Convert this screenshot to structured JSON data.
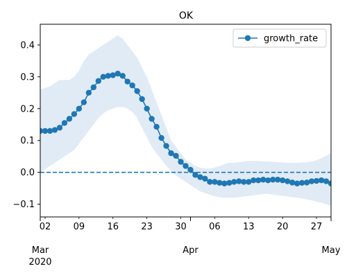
{
  "chart_data": {
    "type": "line",
    "title": "OK",
    "xlabel": "",
    "ylabel": "",
    "xlim": [
      "2020-03-01",
      "2020-04-30"
    ],
    "ylim": [
      -0.14,
      0.465
    ],
    "yticks": [
      -0.1,
      0.0,
      0.1,
      0.2,
      0.3,
      0.4
    ],
    "ytick_labels": [
      "−0.1",
      "0.0",
      "0.1",
      "0.2",
      "0.3",
      "0.4"
    ],
    "x_minor_ticks": [
      {
        "date": "2020-03-02",
        "label": "02"
      },
      {
        "date": "2020-03-09",
        "label": "09"
      },
      {
        "date": "2020-03-16",
        "label": "16"
      },
      {
        "date": "2020-03-23",
        "label": "23"
      },
      {
        "date": "2020-03-30",
        "label": "30"
      },
      {
        "date": "2020-04-06",
        "label": "06"
      },
      {
        "date": "2020-04-13",
        "label": "13"
      },
      {
        "date": "2020-04-20",
        "label": "20"
      },
      {
        "date": "2020-04-27",
        "label": "27"
      }
    ],
    "x_major_ticks": [
      {
        "date": "2020-03-01",
        "label": "Mar",
        "sublabel": "2020"
      },
      {
        "date": "2020-04-01",
        "label": "Apr",
        "sublabel": ""
      },
      {
        "date": "2020-05-01",
        "label": "May",
        "sublabel": ""
      }
    ],
    "grid": false,
    "legend": {
      "position": "top-right",
      "entries": [
        "growth_rate"
      ]
    },
    "reference_line": {
      "y": 0.0,
      "style": "dashed",
      "color": "#1f77b4"
    },
    "colors": {
      "series": "#1f77b4",
      "band": "#dce8f5"
    },
    "x_start": "2020-03-01",
    "series": [
      {
        "name": "growth_rate",
        "values": [
          0.13,
          0.13,
          0.13,
          0.133,
          0.14,
          0.155,
          0.168,
          0.183,
          0.2,
          0.22,
          0.25,
          0.267,
          0.287,
          0.3,
          0.303,
          0.305,
          0.31,
          0.303,
          0.285,
          0.273,
          0.255,
          0.23,
          0.2,
          0.168,
          0.143,
          0.108,
          0.083,
          0.06,
          0.052,
          0.033,
          0.02,
          0.008,
          -0.008,
          -0.015,
          -0.02,
          -0.03,
          -0.03,
          -0.033,
          -0.035,
          -0.033,
          -0.03,
          -0.028,
          -0.03,
          -0.03,
          -0.025,
          -0.025,
          -0.023,
          -0.025,
          -0.023,
          -0.023,
          -0.025,
          -0.028,
          -0.032,
          -0.035,
          -0.033,
          -0.032,
          -0.028,
          -0.027,
          -0.025,
          -0.028,
          -0.035
        ],
        "lower": [
          0.0,
          0.01,
          0.02,
          0.03,
          0.04,
          0.05,
          0.06,
          0.07,
          0.09,
          0.11,
          0.13,
          0.15,
          0.17,
          0.185,
          0.195,
          0.2,
          0.205,
          0.205,
          0.2,
          0.19,
          0.17,
          0.14,
          0.11,
          0.08,
          0.06,
          0.04,
          0.02,
          0.005,
          -0.01,
          -0.02,
          -0.03,
          -0.04,
          -0.05,
          -0.06,
          -0.065,
          -0.07,
          -0.075,
          -0.078,
          -0.08,
          -0.08,
          -0.08,
          -0.078,
          -0.076,
          -0.074,
          -0.072,
          -0.07,
          -0.068,
          -0.068,
          -0.07,
          -0.072,
          -0.074,
          -0.076,
          -0.078,
          -0.08,
          -0.082,
          -0.085,
          -0.088,
          -0.092,
          -0.095,
          -0.1,
          -0.105
        ],
        "upper": [
          0.26,
          0.265,
          0.27,
          0.28,
          0.29,
          0.29,
          0.29,
          0.3,
          0.32,
          0.35,
          0.37,
          0.38,
          0.39,
          0.4,
          0.41,
          0.42,
          0.43,
          0.42,
          0.4,
          0.38,
          0.36,
          0.33,
          0.3,
          0.26,
          0.22,
          0.18,
          0.14,
          0.1,
          0.08,
          0.06,
          0.04,
          0.03,
          0.02,
          0.015,
          0.012,
          0.012,
          0.015,
          0.02,
          0.025,
          0.03,
          0.03,
          0.032,
          0.034,
          0.036,
          0.036,
          0.036,
          0.035,
          0.034,
          0.033,
          0.032,
          0.031,
          0.03,
          0.03,
          0.03,
          0.031,
          0.032,
          0.034,
          0.038,
          0.045,
          0.052,
          0.06
        ]
      }
    ]
  }
}
